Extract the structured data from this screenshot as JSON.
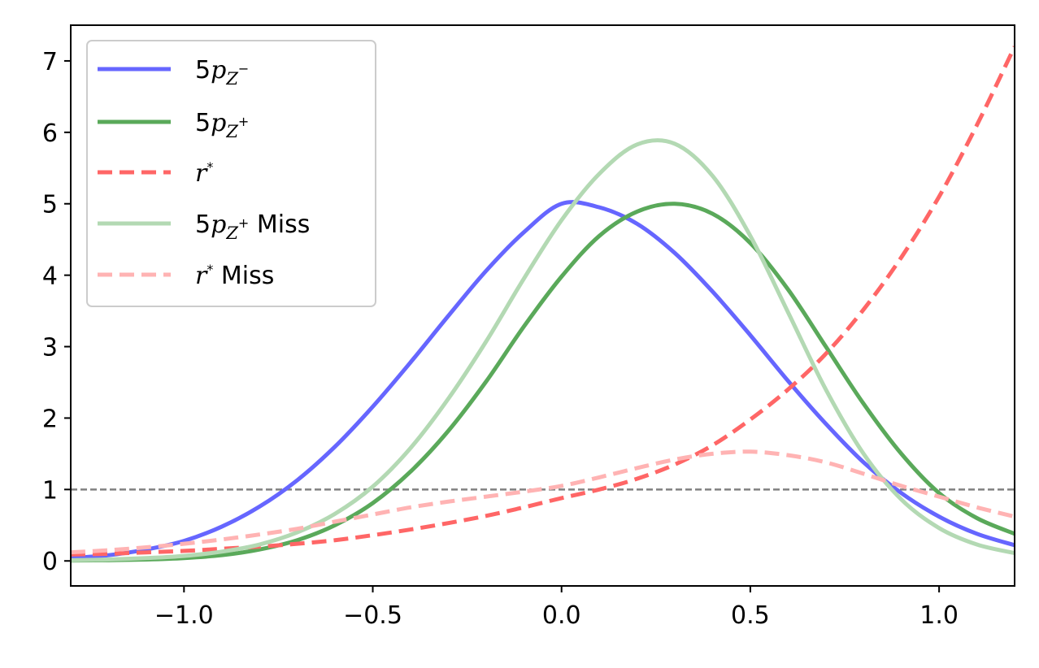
{
  "chart_data": {
    "type": "line",
    "title": "",
    "xlabel": "",
    "ylabel": "",
    "xlim": [
      -1.3,
      1.2
    ],
    "ylim": [
      -0.35,
      7.5
    ],
    "xticks": [
      -1.0,
      -0.5,
      0.0,
      0.5,
      1.0
    ],
    "xtick_labels": [
      "−1.0",
      "−0.5",
      "0.0",
      "0.5",
      "1.0"
    ],
    "yticks": [
      0,
      1,
      2,
      3,
      4,
      5,
      6,
      7
    ],
    "ytick_labels": [
      "0",
      "1",
      "2",
      "3",
      "4",
      "5",
      "6",
      "7"
    ],
    "grid": false,
    "legend_position": "top-left",
    "hline": {
      "y": 1,
      "color": "#808080",
      "style": "dashed"
    },
    "x": [
      -1.3,
      -1.2,
      -1.1,
      -1.0,
      -0.9,
      -0.8,
      -0.7,
      -0.6,
      -0.5,
      -0.4,
      -0.3,
      -0.2,
      -0.1,
      0.0,
      0.1,
      0.2,
      0.3,
      0.4,
      0.5,
      0.6,
      0.7,
      0.8,
      0.9,
      1.0,
      1.1,
      1.2
    ],
    "series": [
      {
        "key": "pzminus",
        "legend_base": "5",
        "legend_italic": "p",
        "legend_sub": "Z",
        "legend_sup": "−",
        "legend_suffix": "",
        "color": "#6666ff",
        "dashed": false,
        "values": [
          0.04,
          0.08,
          0.16,
          0.28,
          0.48,
          0.76,
          1.13,
          1.6,
          2.16,
          2.78,
          3.43,
          4.06,
          4.6,
          5.0,
          4.95,
          4.72,
          4.31,
          3.77,
          3.16,
          2.52,
          1.92,
          1.38,
          0.95,
          0.62,
          0.38,
          0.22
        ]
      },
      {
        "key": "pzplus",
        "legend_base": "5",
        "legend_italic": "p",
        "legend_sub": "Z",
        "legend_sup": "+",
        "legend_suffix": "",
        "color": "#5aa95a",
        "dashed": false,
        "values": [
          0.005,
          0.01,
          0.02,
          0.04,
          0.08,
          0.16,
          0.29,
          0.5,
          0.81,
          1.25,
          1.82,
          2.51,
          3.28,
          3.98,
          4.55,
          4.89,
          5.0,
          4.86,
          4.45,
          3.8,
          3.0,
          2.2,
          1.5,
          0.95,
          0.6,
          0.38
        ]
      },
      {
        "key": "rstar",
        "legend_base": "",
        "legend_italic": "r",
        "legend_sub": "",
        "legend_sup": "*",
        "legend_suffix": "",
        "color": "#ff6666",
        "dashed": true,
        "values": [
          0.09,
          0.1,
          0.12,
          0.14,
          0.17,
          0.2,
          0.24,
          0.29,
          0.36,
          0.44,
          0.53,
          0.63,
          0.75,
          0.88,
          1.0,
          1.15,
          1.35,
          1.62,
          1.98,
          2.4,
          2.9,
          3.52,
          4.25,
          5.1,
          6.1,
          7.2
        ]
      },
      {
        "key": "pzplus_miss",
        "legend_base": "5",
        "legend_italic": "p",
        "legend_sub": "Z",
        "legend_sup": "+",
        "legend_suffix": " Miss",
        "color": "#b3d9b3",
        "dashed": false,
        "values": [
          0.01,
          0.02,
          0.04,
          0.07,
          0.13,
          0.23,
          0.4,
          0.66,
          1.04,
          1.58,
          2.27,
          3.07,
          3.95,
          4.77,
          5.42,
          5.83,
          5.84,
          5.39,
          4.55,
          3.48,
          2.4,
          1.5,
          0.86,
          0.46,
          0.23,
          0.11
        ]
      },
      {
        "key": "rstar_miss",
        "legend_base": "",
        "legend_italic": "r",
        "legend_sub": "",
        "legend_sup": "*",
        "legend_suffix": " Miss",
        "color": "#ffb3b3",
        "dashed": true,
        "values": [
          0.12,
          0.15,
          0.19,
          0.24,
          0.3,
          0.37,
          0.45,
          0.55,
          0.65,
          0.75,
          0.83,
          0.9,
          0.97,
          1.05,
          1.17,
          1.3,
          1.42,
          1.5,
          1.53,
          1.48,
          1.38,
          1.22,
          1.05,
          0.9,
          0.75,
          0.62
        ]
      }
    ]
  }
}
